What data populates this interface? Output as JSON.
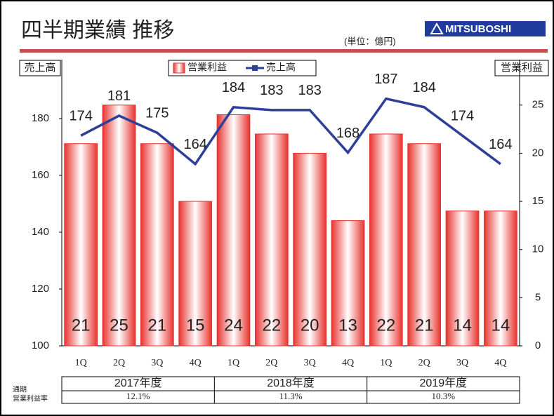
{
  "chart_data": {
    "type": "bar",
    "title": "四半期業績 推移",
    "subtitle": "(単位：億円)",
    "logo": "MITSUBOSHI",
    "ylabel": "売上高",
    "y2label": "営業利益",
    "categories": [
      "1Q",
      "2Q",
      "3Q",
      "4Q",
      "1Q",
      "2Q",
      "3Q",
      "4Q",
      "1Q",
      "2Q",
      "3Q",
      "4Q"
    ],
    "series": [
      {
        "name": "営業利益",
        "type": "bar",
        "axis": "y2",
        "color": "#e8332f",
        "values": [
          21,
          25,
          21,
          15,
          24,
          22,
          20,
          13,
          22,
          21,
          14,
          14
        ]
      },
      {
        "name": "売上高",
        "type": "line",
        "color": "#2e3f9a",
        "values": [
          174,
          181,
          175,
          164,
          184,
          183,
          183,
          168,
          187,
          184,
          174,
          164
        ]
      }
    ],
    "ylim": [
      100,
      200
    ],
    "yticks": [
      100,
      120,
      140,
      160,
      180
    ],
    "y2lim": [
      0,
      29.5
    ],
    "y2ticks": [
      0,
      5,
      10,
      15,
      20,
      25
    ],
    "table_label": [
      "通期",
      "営業利益率"
    ],
    "groups": [
      {
        "label": "2017年度",
        "rate": "12.1%"
      },
      {
        "label": "2018年度",
        "rate": "11.3%"
      },
      {
        "label": "2019年度",
        "rate": "10.3%"
      }
    ]
  }
}
